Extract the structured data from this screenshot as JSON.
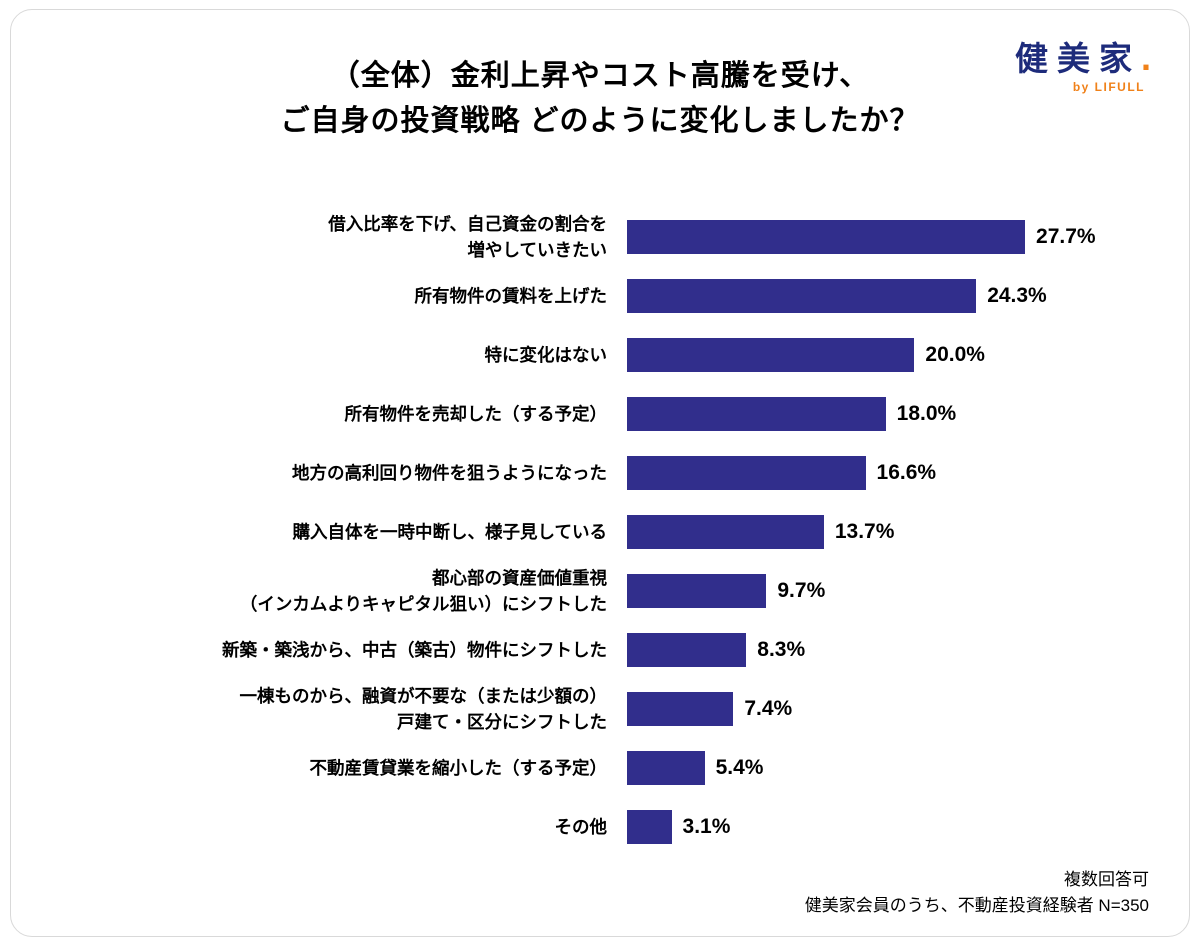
{
  "header": {
    "title": "（全体）金利上昇やコスト高騰を受け、\nご自身の投資戦略 どのように変化しましたか？"
  },
  "logo": {
    "brand": "健美家",
    "dot": ".",
    "byline": "by LIFULL"
  },
  "footer": {
    "note1": "複数回答可",
    "note2": "健美家会員のうち、不動産投資経験者 N=350"
  },
  "colors": {
    "bar": "#312E8C",
    "brand_navy": "#1D2B7B",
    "brand_orange": "#F08119"
  },
  "chart_data": {
    "type": "bar",
    "orientation": "horizontal",
    "title": "（全体）金利上昇やコスト高騰を受け、ご自身の投資戦略 どのように変化しましたか？",
    "categories": [
      "借入比率を下げ、自己資金の割合を\n増やしていきたい",
      "所有物件の賃料を上げた",
      "特に変化はない",
      "所有物件を売却した（する予定）",
      "地方の高利回り物件を狙うようになった",
      "購入自体を一時中断し、様子見している",
      "都心部の資産価値重視\n（インカムよりキャピタル狙い）にシフトした",
      "新築・築浅から、中古（築古）物件にシフトした",
      "一棟ものから、融資が不要な（または少額の）\n戸建て・区分にシフトした",
      "不動産賃貸業を縮小した（する予定）",
      "その他"
    ],
    "values": [
      27.7,
      24.3,
      20.0,
      18.0,
      16.6,
      13.7,
      9.7,
      8.3,
      7.4,
      5.4,
      3.1
    ],
    "value_labels": [
      "27.7%",
      "24.3%",
      "20.0%",
      "18.0%",
      "16.6%",
      "13.7%",
      "9.7%",
      "8.3%",
      "7.4%",
      "5.4%",
      "3.1%"
    ],
    "unit": "%",
    "xlim": [
      0,
      30
    ],
    "grid": false,
    "legend": "none",
    "notes": [
      "複数回答可",
      "健美家会員のうち、不動産投資経験者 N=350"
    ]
  }
}
